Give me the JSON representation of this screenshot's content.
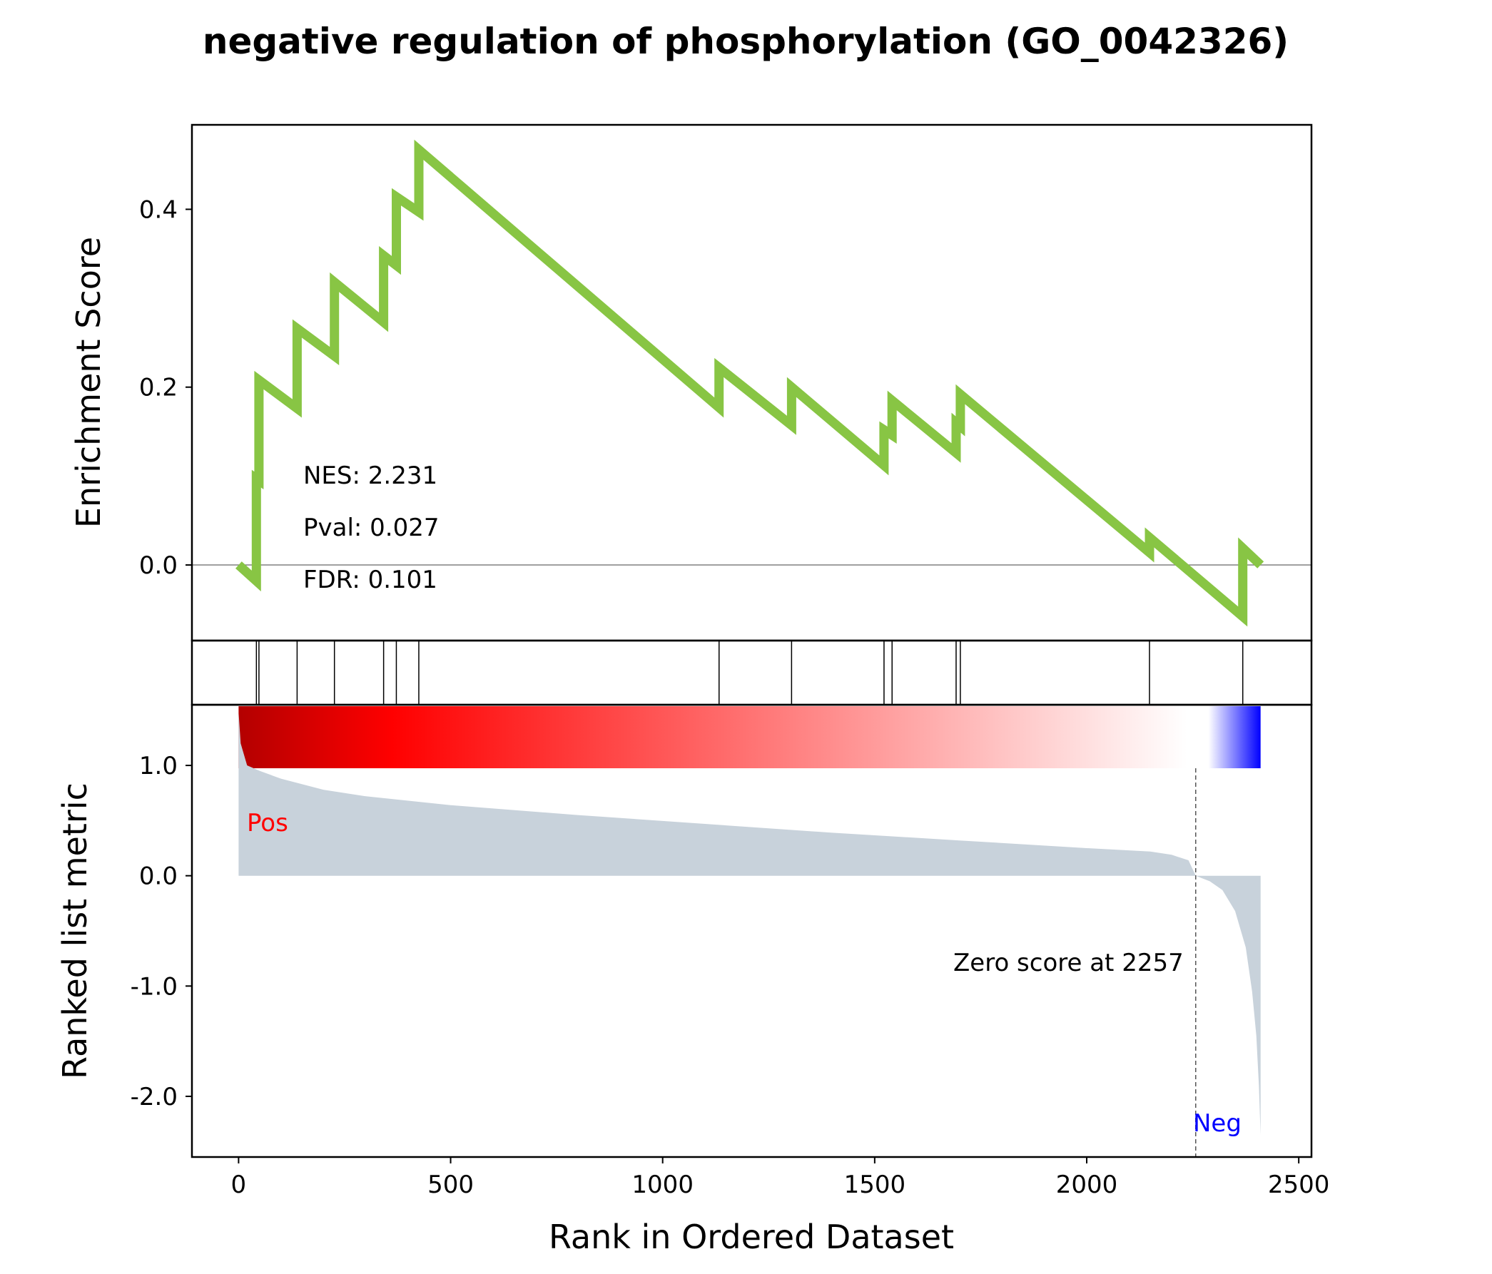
{
  "chart_data": {
    "type": "line",
    "title": "negative regulation of phosphorylation (GO_0042326)",
    "xlabel": "Rank in Ordered Dataset",
    "xlim": [
      -110,
      2530
    ],
    "x_ticks": [
      "0",
      "500",
      "1000",
      "1500",
      "2000",
      "2500"
    ],
    "x_tick_values": [
      0,
      500,
      1000,
      1500,
      2000,
      2500
    ],
    "enrichment": {
      "ylabel": "Enrichment Score",
      "ylim": [
        -0.085,
        0.495
      ],
      "y_ticks": [
        "0.0",
        "0.2",
        "0.4"
      ],
      "y_tick_values": [
        0.0,
        0.2,
        0.4
      ],
      "line_color": "#88c544",
      "x": [
        0,
        42,
        42,
        48,
        48,
        138,
        138,
        226,
        226,
        342,
        342,
        372,
        372,
        425,
        425,
        1133,
        1133,
        1304,
        1304,
        1522,
        1522,
        1541,
        1541,
        1692,
        1692,
        1702,
        1702,
        2148,
        2148,
        2368,
        2368,
        2410
      ],
      "y": [
        0.0,
        -0.018,
        0.097,
        0.095,
        0.208,
        0.176,
        0.266,
        0.235,
        0.318,
        0.273,
        0.348,
        0.337,
        0.414,
        0.397,
        0.467,
        0.177,
        0.222,
        0.157,
        0.2,
        0.112,
        0.152,
        0.146,
        0.185,
        0.126,
        0.16,
        0.156,
        0.192,
        0.014,
        0.031,
        -0.058,
        0.019,
        0.0
      ],
      "stats": [
        "NES: 2.231",
        "Pval: 0.027",
        "FDR: 0.101"
      ]
    },
    "hits": [
      42,
      48,
      138,
      226,
      342,
      372,
      425,
      1133,
      1304,
      1522,
      1541,
      1692,
      1702,
      2148,
      2368
    ],
    "colorbar": {
      "positive_colors": [
        "#b30000",
        "#ff0000",
        "#ffffff"
      ],
      "negative_colors": [
        "#ffffff",
        "#0000ff"
      ]
    },
    "ranked_metric": {
      "ylabel": "Ranked list metric",
      "ylim": [
        -2.55,
        1.55
      ],
      "y_ticks": [
        "1.0",
        "0.0",
        "-1.0",
        "-2.0"
      ],
      "y_tick_values": [
        1.0,
        0.0,
        -1.0,
        -2.0
      ],
      "fill_color": "#c8d2db",
      "x": [
        0,
        5,
        20,
        50,
        100,
        200,
        300,
        500,
        800,
        1100,
        1400,
        1700,
        2000,
        2150,
        2200,
        2240,
        2257,
        2290,
        2320,
        2350,
        2375,
        2390,
        2400,
        2406,
        2410
      ],
      "y": [
        1.48,
        1.2,
        1.0,
        0.95,
        0.88,
        0.78,
        0.72,
        0.64,
        0.55,
        0.47,
        0.39,
        0.32,
        0.25,
        0.22,
        0.19,
        0.14,
        0.0,
        -0.05,
        -0.13,
        -0.32,
        -0.65,
        -1.05,
        -1.45,
        -1.9,
        -2.35
      ],
      "zero_cross": 2257,
      "zero_label": "Zero score at 2257",
      "pos_label": "Pos",
      "neg_label": "Neg",
      "pos_color": "#ff0000",
      "neg_color": "#0000ff"
    }
  }
}
